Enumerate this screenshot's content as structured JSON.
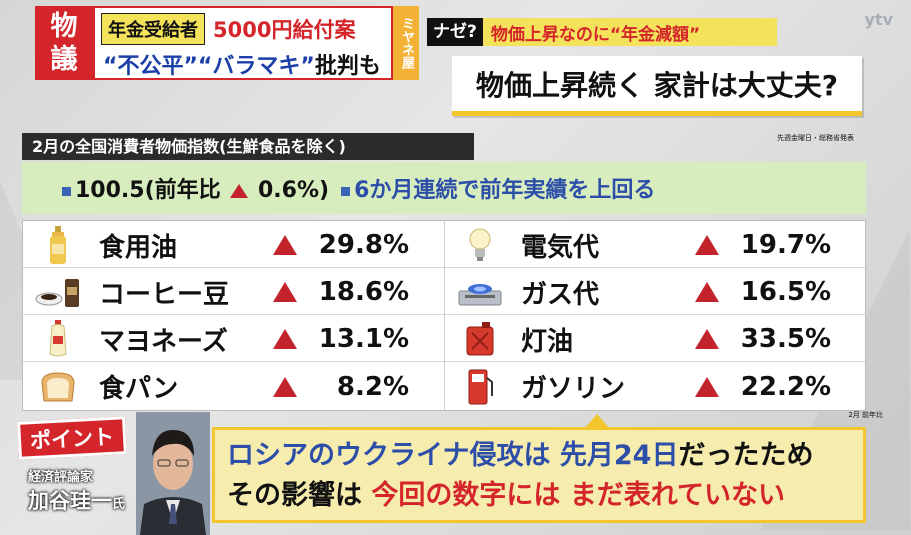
{
  "header": {
    "logo_lines": [
      "物",
      "議"
    ],
    "tag": "年金受給者",
    "red_title": "5000円給付案",
    "line2_a": "“不公平”",
    "line2_b": "“バラマキ”",
    "line2_c": "批判も",
    "side_tab": "ミヤネ屋"
  },
  "right_header": {
    "naze_tag": "ナゼ?",
    "naze_text": "物価上昇なのに“年金減額”",
    "question": "物価上昇続く 家計は大丈夫?",
    "watermark": "ytv",
    "source": "先週金曜日・総務省発表"
  },
  "panel": {
    "title": "2月の全国消費者物価指数(生鮮食品を除く)",
    "summary_value": "100.5(前年比",
    "summary_change": "0.6%)",
    "summary_note": "6か月連続で前年実績を上回る",
    "note": "2月 前年比"
  },
  "items_left": [
    {
      "name": "食用油",
      "value": "29.8%",
      "icon": "oil-bottle-icon"
    },
    {
      "name": "コーヒー豆",
      "value": "18.6%",
      "icon": "coffee-icon"
    },
    {
      "name": "マヨネーズ",
      "value": "13.1%",
      "icon": "mayonnaise-icon"
    },
    {
      "name": "食パン",
      "value": "8.2%",
      "icon": "bread-icon"
    }
  ],
  "items_right": [
    {
      "name": "電気代",
      "value": "19.7%",
      "icon": "lightbulb-icon"
    },
    {
      "name": "ガス代",
      "value": "16.5%",
      "icon": "gas-stove-icon"
    },
    {
      "name": "灯油",
      "value": "33.5%",
      "icon": "kerosene-can-icon"
    },
    {
      "name": "ガソリン",
      "value": "22.2%",
      "icon": "gas-pump-icon"
    }
  ],
  "bottom": {
    "point_tag": "ポイント",
    "person_role": "経済評論家",
    "person_name": "加谷珪一",
    "person_suffix": "氏",
    "quote_l1_a": "ロシアのウクライナ侵攻は",
    "quote_l1_b": "先月24日",
    "quote_l1_c": "だったため",
    "quote_l2_a": "その影響は",
    "quote_l2_b": "今回の数字には まだ表れていない"
  },
  "colors": {
    "accent_red": "#d4252b",
    "accent_yellow": "#f3e25a",
    "accent_blue": "#2c4ea8",
    "summary_green": "#d7edbe"
  }
}
